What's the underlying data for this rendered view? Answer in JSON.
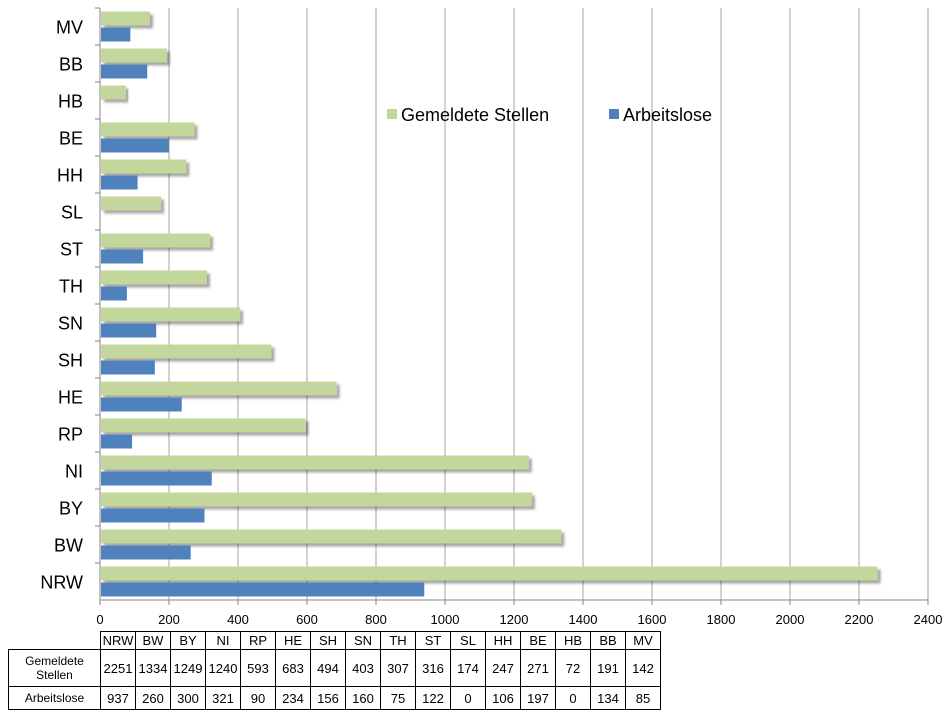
{
  "chart_data": {
    "type": "bar",
    "orientation": "horizontal",
    "categories": [
      "NRW",
      "BW",
      "BY",
      "NI",
      "RP",
      "HE",
      "SH",
      "SN",
      "TH",
      "ST",
      "SL",
      "HH",
      "BE",
      "HB",
      "BB",
      "MV"
    ],
    "series": [
      {
        "name": "Gemeldete Stellen",
        "values": [
          2251,
          1334,
          1249,
          1240,
          593,
          683,
          494,
          403,
          307,
          316,
          174,
          247,
          271,
          72,
          191,
          142
        ]
      },
      {
        "name": "Arbeitslose",
        "values": [
          937,
          260,
          300,
          321,
          90,
          234,
          156,
          160,
          75,
          122,
          0,
          106,
          197,
          0,
          134,
          85
        ]
      }
    ],
    "xlim": [
      0,
      2400
    ],
    "xticks": [
      "0",
      "200",
      "400",
      "600",
      "800",
      "1000",
      "1200",
      "1400",
      "1600",
      "1800",
      "2000",
      "2200",
      "2400"
    ],
    "grid": "vertical",
    "legend_position": "top-right",
    "colors": {
      "Gemeldete Stellen": "#c3d69b",
      "Arbeitslose": "#4f81bd"
    },
    "data_table": {
      "row_labels": [
        "Gemeldete Stellen",
        "Arbeitslose"
      ],
      "header": [
        "NRW",
        "BW",
        "BY",
        "NI",
        "RP",
        "HE",
        "SH",
        "SN",
        "TH",
        "ST",
        "SL",
        "HH",
        "BE",
        "HB",
        "BB",
        "MV"
      ],
      "rows": [
        [
          "2251",
          "1334",
          "1249",
          "1240",
          "593",
          "683",
          "494",
          "403",
          "307",
          "316",
          "174",
          "247",
          "271",
          "72",
          "191",
          "142"
        ],
        [
          "937",
          "260",
          "300",
          "321",
          "90",
          "234",
          "156",
          "160",
          "75",
          "122",
          "0",
          "106",
          "197",
          "0",
          "134",
          "85"
        ]
      ]
    }
  }
}
